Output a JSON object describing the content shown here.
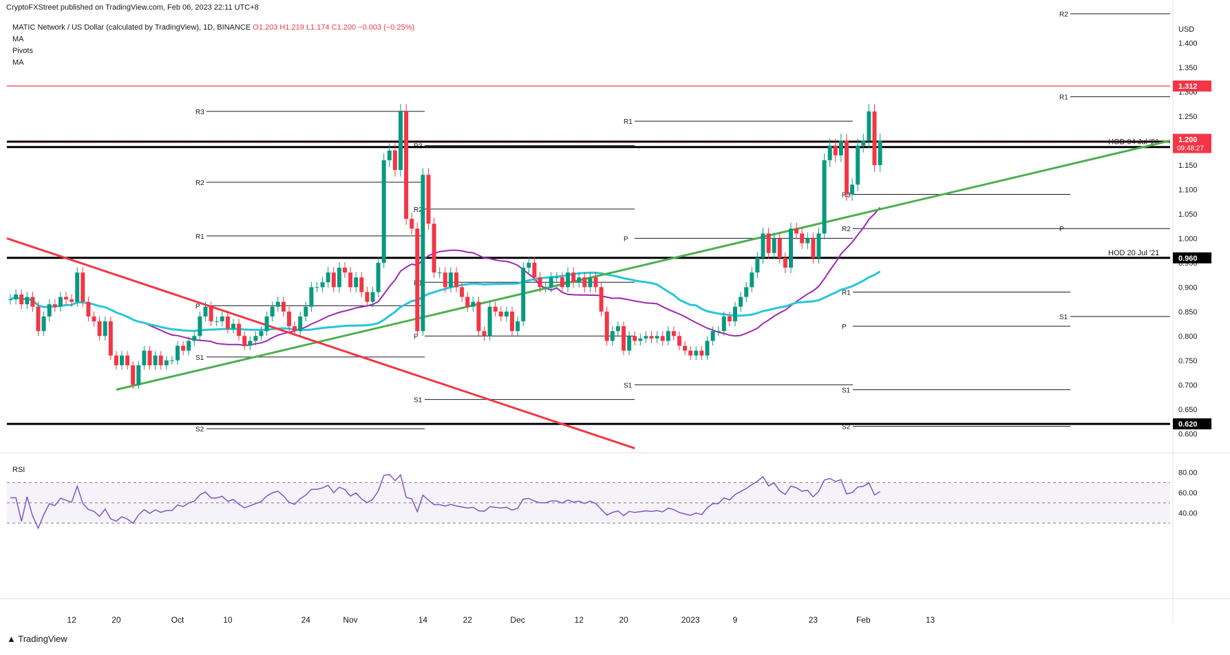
{
  "header": {
    "published_by": "CryptoFXStreet published on TradingView.com, Feb 06, 2023 22:11 UTC+8"
  },
  "legend": {
    "symbol": "MATIC Network / US Dollar (calculated by TradingView), 1D, BINANCE",
    "ohlc": "O1.203 H1.219 L1.174 C1.200 −0.003 (−0.25%)",
    "indicators": [
      "MA",
      "Pivots",
      "MA"
    ]
  },
  "footer": {
    "logo": "TradingView"
  },
  "chart_data": {
    "type": "candlestick",
    "symbol": "MATIC/USD",
    "timeframe": "1D",
    "currency": "USD",
    "ylim": [
      0.575,
      1.46
    ],
    "yticks": [
      "1.400",
      "1.350",
      "1.300",
      "1.250",
      "1.150",
      "1.100",
      "1.050",
      "1.000",
      "0.950",
      "0.900",
      "0.850",
      "0.800",
      "0.750",
      "0.700",
      "0.650",
      "0.600"
    ],
    "xticks": [
      {
        "label": "12",
        "date": "2022-09-12"
      },
      {
        "label": "20",
        "date": "2022-09-20"
      },
      {
        "label": "Oct",
        "date": "2022-10-01"
      },
      {
        "label": "10",
        "date": "2022-10-10"
      },
      {
        "label": "24",
        "date": "2022-10-24"
      },
      {
        "label": "Nov",
        "date": "2022-11-01"
      },
      {
        "label": "14",
        "date": "2022-11-14"
      },
      {
        "label": "22",
        "date": "2022-11-22"
      },
      {
        "label": "Dec",
        "date": "2022-12-01"
      },
      {
        "label": "12",
        "date": "2022-12-12"
      },
      {
        "label": "20",
        "date": "2022-12-20"
      },
      {
        "label": "2023",
        "date": "2023-01-01"
      },
      {
        "label": "9",
        "date": "2023-01-09"
      },
      {
        "label": "23",
        "date": "2023-01-23"
      },
      {
        "label": "Feb",
        "date": "2023-02-01"
      },
      {
        "label": "13",
        "date": "2023-02-13"
      }
    ],
    "closes": [
      0.875,
      0.885,
      0.865,
      0.88,
      0.86,
      0.81,
      0.84,
      0.865,
      0.86,
      0.88,
      0.875,
      0.87,
      0.93,
      0.87,
      0.84,
      0.83,
      0.8,
      0.83,
      0.76,
      0.74,
      0.76,
      0.74,
      0.7,
      0.74,
      0.77,
      0.74,
      0.76,
      0.74,
      0.75,
      0.75,
      0.78,
      0.77,
      0.79,
      0.8,
      0.84,
      0.86,
      0.83,
      0.83,
      0.84,
      0.815,
      0.825,
      0.8,
      0.78,
      0.79,
      0.8,
      0.81,
      0.84,
      0.86,
      0.87,
      0.85,
      0.82,
      0.81,
      0.84,
      0.86,
      0.9,
      0.9,
      0.91,
      0.93,
      0.9,
      0.94,
      0.93,
      0.9,
      0.92,
      0.89,
      0.87,
      0.89,
      0.95,
      1.16,
      1.18,
      1.14,
      1.26,
      1.04,
      1.02,
      0.81,
      1.13,
      1.03,
      0.93,
      0.93,
      0.9,
      0.93,
      0.9,
      0.88,
      0.86,
      0.87,
      0.81,
      0.8,
      0.86,
      0.85,
      0.84,
      0.85,
      0.81,
      0.83,
      0.94,
      0.95,
      0.92,
      0.9,
      0.9,
      0.92,
      0.92,
      0.9,
      0.93,
      0.91,
      0.92,
      0.9,
      0.92,
      0.9,
      0.85,
      0.79,
      0.81,
      0.82,
      0.77,
      0.8,
      0.79,
      0.795,
      0.8,
      0.795,
      0.8,
      0.79,
      0.81,
      0.8,
      0.78,
      0.77,
      0.76,
      0.77,
      0.76,
      0.79,
      0.81,
      0.81,
      0.84,
      0.83,
      0.86,
      0.88,
      0.9,
      0.93,
      0.96,
      1.01,
      0.97,
      1.0,
      0.96,
      0.94,
      1.02,
      1.01,
      0.99,
      1.0,
      0.96,
      1.01,
      1.16,
      1.19,
      1.17,
      1.2,
      1.09,
      1.11,
      1.19,
      1.2,
      1.26,
      1.15,
      1.2
    ],
    "pivot_levels": [
      {
        "label": "R3",
        "value": 1.26
      },
      {
        "label": "R2",
        "value": 1.115
      },
      {
        "label": "R1",
        "value": 1.005
      },
      {
        "label": "P",
        "value": 0.862
      },
      {
        "label": "S1",
        "value": 0.757
      },
      {
        "label": "S2",
        "value": 0.61
      },
      {
        "label": "R1",
        "value": 1.24
      },
      {
        "label": "P",
        "value": 1.0
      },
      {
        "label": "S1",
        "value": 0.7
      },
      {
        "label": "R3",
        "value": 1.09
      },
      {
        "label": "R2",
        "value": 1.02
      },
      {
        "label": "R1",
        "value": 0.89
      },
      {
        "label": "P",
        "value": 0.82
      },
      {
        "label": "S1",
        "value": 0.69
      },
      {
        "label": "S2",
        "value": 0.615
      },
      {
        "label": "R2",
        "value": 1.46
      },
      {
        "label": "R1",
        "value": 1.29
      },
      {
        "label": "P",
        "value": 1.02
      },
      {
        "label": "S1",
        "value": 0.84
      },
      {
        "label": "R3",
        "value": 1.19
      },
      {
        "label": "R2",
        "value": 1.06
      },
      {
        "label": "R1",
        "value": 0.91
      },
      {
        "label": "P",
        "value": 0.8
      },
      {
        "label": "S1",
        "value": 0.67
      }
    ],
    "horizontal_levels": [
      {
        "value": 1.312,
        "label": "1.312",
        "color": "#f23645"
      },
      {
        "value": 1.198,
        "label": "1.198",
        "color": "#000000"
      },
      {
        "value": 1.187,
        "label": "1.187",
        "color": "#000000",
        "annotation": "HOD 04 Jul '21"
      },
      {
        "value": 0.96,
        "label": "0.960",
        "color": "#000000",
        "annotation": "HOD 20 Jul '21"
      },
      {
        "value": 0.62,
        "label": "0.620",
        "color": "#000000"
      }
    ],
    "current_price": {
      "label": "1.200",
      "countdown": "09:48:27",
      "color": "#f23645"
    },
    "trendlines": [
      {
        "name": "support",
        "color": "#4caf50",
        "from": [
          0.69
        ],
        "to": [
          1.2
        ]
      },
      {
        "name": "resistance",
        "color": "#f23645",
        "from": [
          1.0
        ],
        "to": [
          0.57
        ]
      }
    ],
    "moving_averages": [
      {
        "color": "#9c27b0"
      },
      {
        "color": "#26c6da"
      }
    ],
    "rsi": {
      "label": "RSI",
      "yticks": [
        "80.00",
        "60.00",
        "40.00"
      ],
      "band": [
        30,
        70
      ]
    }
  }
}
